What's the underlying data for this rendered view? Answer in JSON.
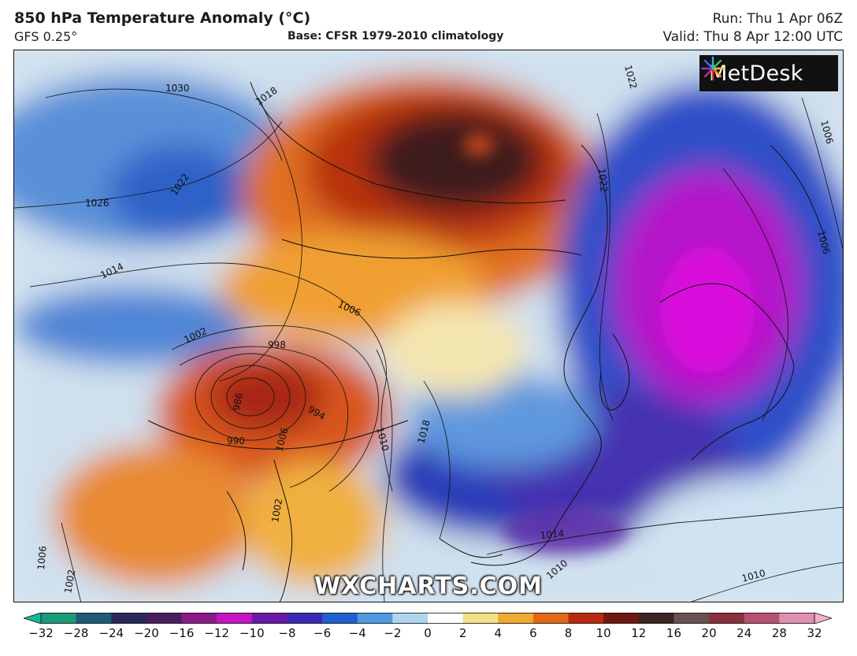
{
  "header": {
    "title": "850 hPa Temperature Anomaly (°C)",
    "model": "GFS 0.25°",
    "base": "Base: CFSR 1979-2010 climatology",
    "run": "Run: Thu 1 Apr 06Z",
    "valid": "Valid: Thu 8 Apr 12:00 UTC"
  },
  "logo": {
    "text": "MetDesk",
    "icon": "metdesk-starburst-icon"
  },
  "watermark": "WXCHARTS.COM",
  "isobar_labels": [
    "1030",
    "1026",
    "1022",
    "1018",
    "1014",
    "1006",
    "1002",
    "998",
    "986",
    "994",
    "990",
    "1006",
    "1010",
    "1018",
    "1022",
    "1014",
    "1010",
    "1010",
    "1002",
    "1006",
    "1002",
    "1022",
    "1006",
    "1006"
  ],
  "colorbar": {
    "labels": [
      "−32",
      "−28",
      "−24",
      "−20",
      "−16",
      "−12",
      "−10",
      "−8",
      "−6",
      "−4",
      "−2",
      "0",
      "2",
      "4",
      "6",
      "8",
      "10",
      "12",
      "16",
      "20",
      "24",
      "28",
      "32"
    ],
    "colors": [
      "#1a9a78",
      "#1f5a7a",
      "#2a2a5a",
      "#4a1e5e",
      "#8a1a8a",
      "#c414c4",
      "#6a1aa8",
      "#3a2ab0",
      "#2060d0",
      "#4f9ae0",
      "#b0d4ee",
      "#ffffff",
      "#f5e08a",
      "#f0a830",
      "#e06818",
      "#b82a10",
      "#6e1a10",
      "#3a2424",
      "#6a5050",
      "#8a3040",
      "#b85070",
      "#e090b0"
    ]
  }
}
